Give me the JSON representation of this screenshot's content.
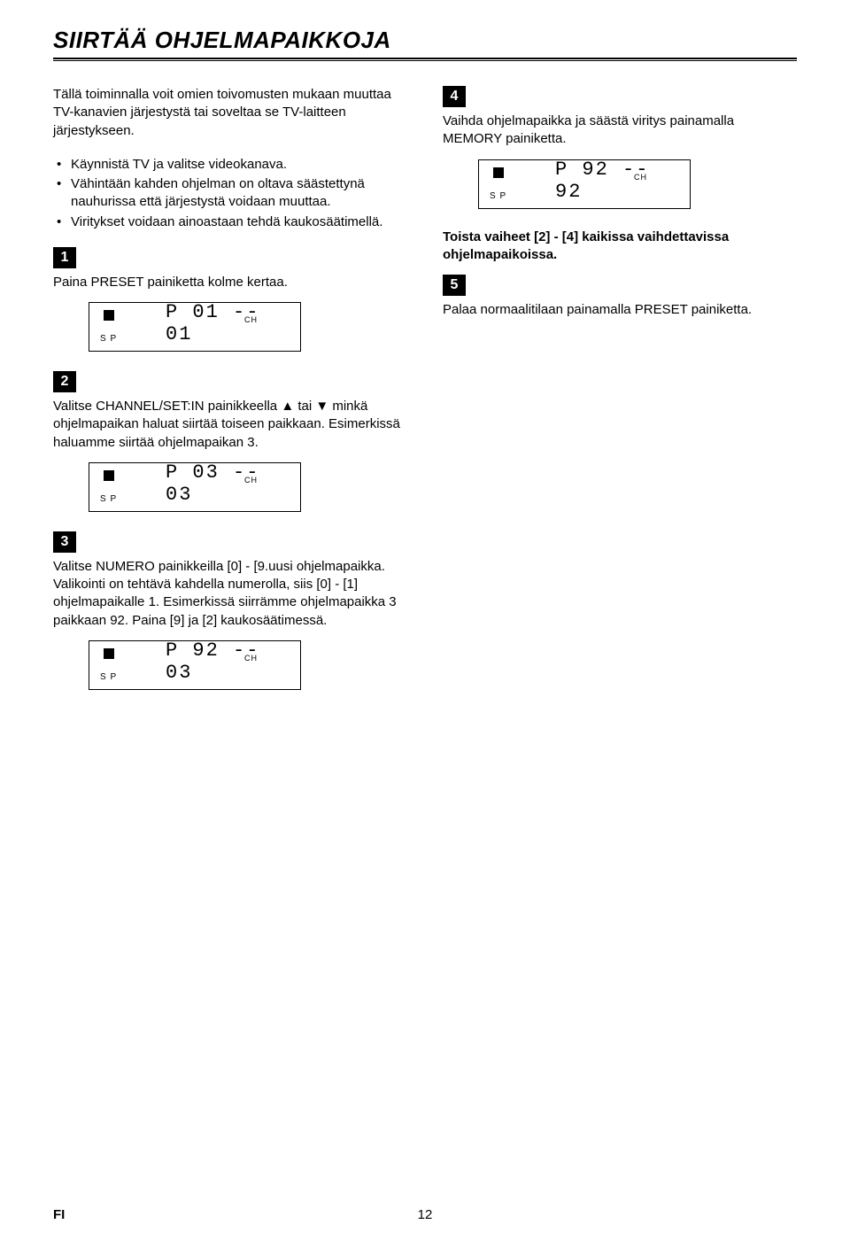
{
  "title": "SIIRTÄÄ OHJELMAPAIKKOJA",
  "intro": "Tällä toiminnalla voit omien toivomusten mukaan muuttaa TV-kanavien järjestystä tai soveltaa se TV-laitteen järjestykseen.",
  "bullets": [
    "Käynnistä TV ja valitse videokanava.",
    "Vähintään kahden ohjelman on oltava säästettynä nauhurissa että järjestystä voidaan muuttaa.",
    "Viritykset voidaan ainoastaan tehdä kaukosäätimellä."
  ],
  "steps": {
    "s1": {
      "num": "1",
      "text": "Paina PRESET painiketta kolme kertaa."
    },
    "s2": {
      "num": "2",
      "text": "Valitse CHANNEL/SET:IN painikkeella ▲ tai ▼ minkä ohjelmapaikan haluat siirtää toiseen paikkaan. Esimerkissä haluamme siirtää ohjelmapaikan 3."
    },
    "s3": {
      "num": "3",
      "text": "Valitse NUMERO painikkeilla [0] - [9.uusi ohjelmapaikka. Valikointi on tehtävä kahdella numerolla, siis [0] - [1] ohjelmapaikalle 1. Esimerkissä siirrämme ohjelmapaikka 3 paikkaan 92. Paina [9] ja [2] kaukosäätimessä."
    },
    "s4": {
      "num": "4",
      "text": "Vaihda ohjelmapaikka ja säästä viritys painamalla MEMORY painiketta."
    },
    "s4b": {
      "text": "Toista vaiheet [2] - [4] kaikissa vaihdettavissa ohjelmapaikoissa."
    },
    "s5": {
      "num": "5",
      "text": "Palaa normaalitilaan painamalla PRESET painiketta."
    }
  },
  "disp_labels": {
    "sp": "S P",
    "ch": "CH"
  },
  "displays": {
    "d1": "P 01 -- 01",
    "d2": "P 03 -- 03",
    "d3": "P 92 -- 03",
    "d4": "P 92 -- 92"
  },
  "footer": {
    "lang": "FI",
    "page": "12"
  }
}
